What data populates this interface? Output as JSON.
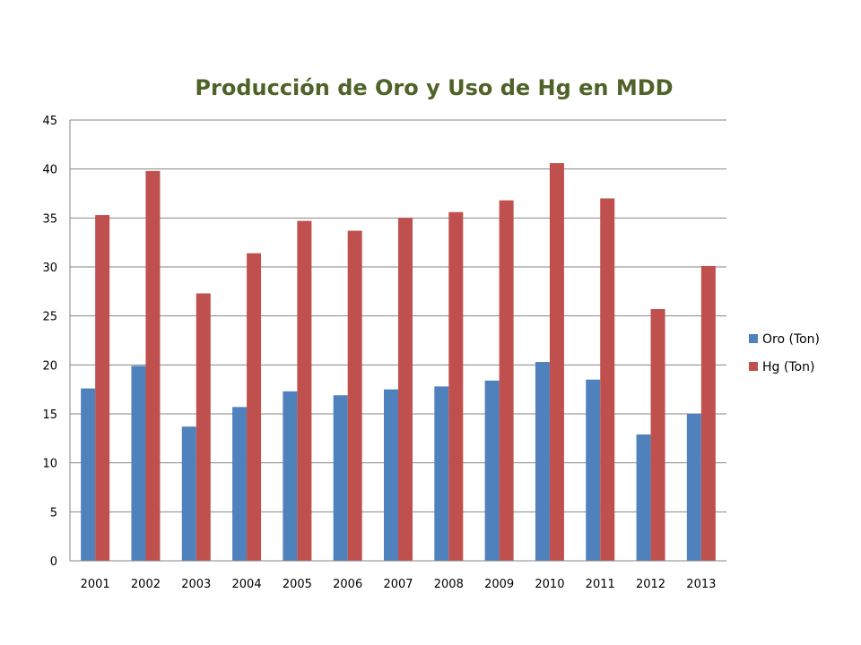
{
  "chart_data": {
    "type": "bar",
    "title": "Producción de Oro y Uso de Hg en MDD",
    "xlabel": "",
    "ylabel": "",
    "categories": [
      "2001",
      "2002",
      "2003",
      "2004",
      "2005",
      "2006",
      "2007",
      "2008",
      "2009",
      "2010",
      "2011",
      "2012",
      "2013"
    ],
    "series": [
      {
        "name": "Oro (Ton)",
        "color": "#4f81bd",
        "values": [
          17.6,
          19.9,
          13.7,
          15.7,
          17.3,
          16.9,
          17.5,
          17.8,
          18.4,
          20.3,
          18.5,
          12.9,
          15.0
        ]
      },
      {
        "name": "Hg (Ton)",
        "color": "#c0504d",
        "values": [
          35.3,
          39.8,
          27.3,
          31.4,
          34.7,
          33.7,
          35.0,
          35.6,
          36.8,
          40.6,
          37.0,
          25.7,
          30.1
        ]
      }
    ],
    "ylim": [
      0,
      45
    ],
    "yticks": [
      0,
      5,
      10,
      15,
      20,
      25,
      30,
      35,
      40,
      45
    ],
    "grid": true,
    "legend_position": "right"
  }
}
